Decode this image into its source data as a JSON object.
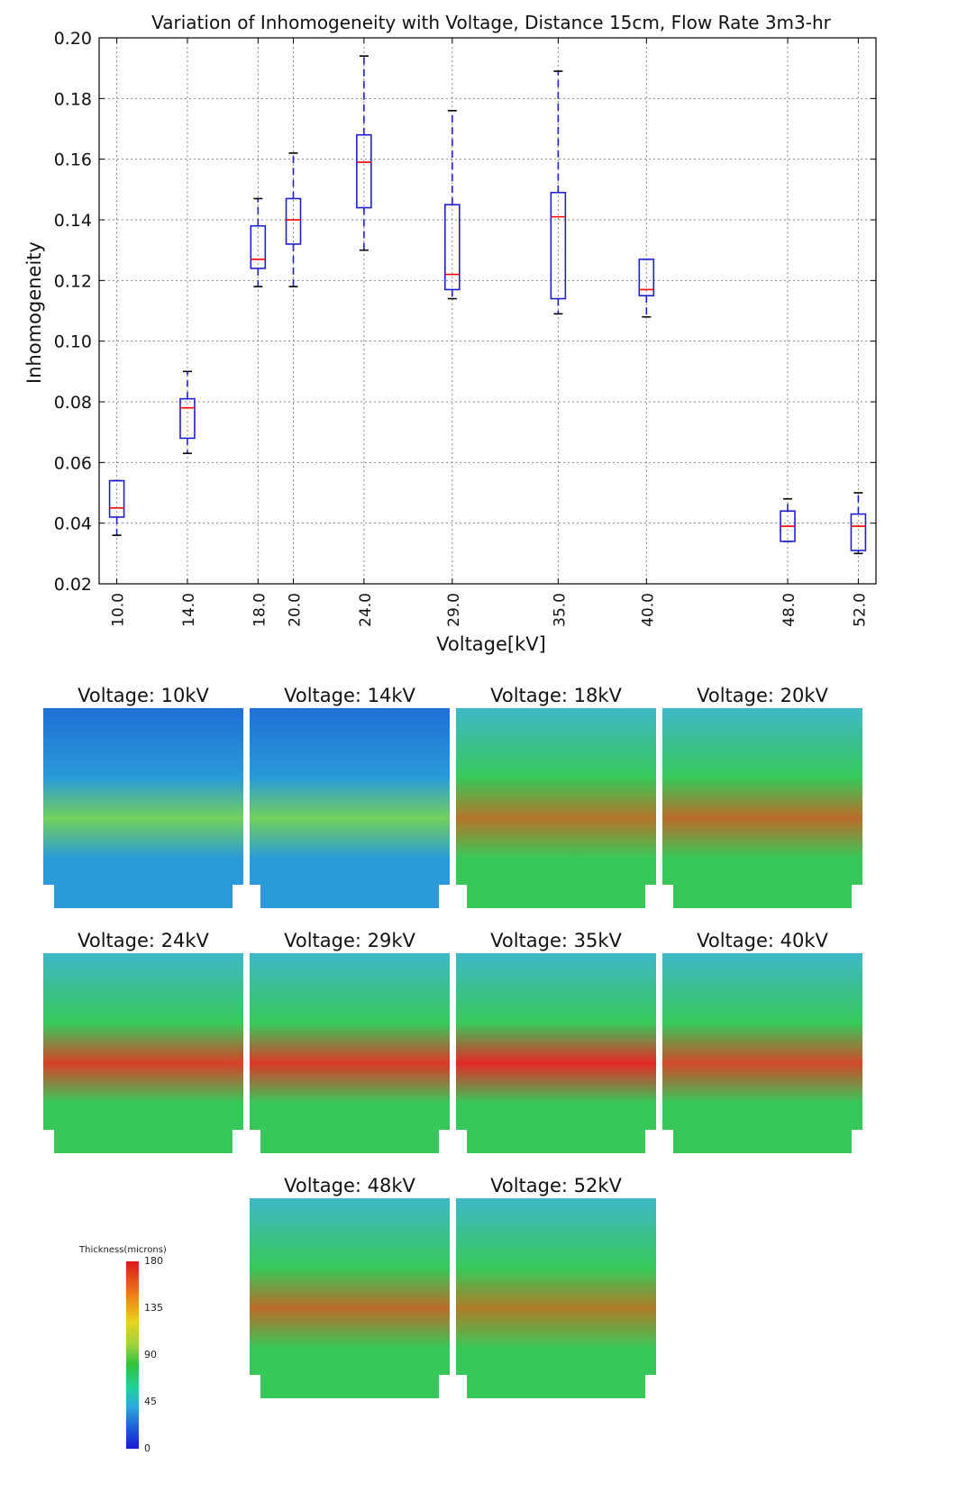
{
  "chart_data": [
    {
      "type": "box",
      "title": "Variation of Inhomogeneity with Voltage, Distance 15cm, Flow Rate 3m3-hr",
      "xlabel": "Voltage[kV]",
      "ylabel": "Inhomogeneity",
      "ylim": [
        0.02,
        0.2
      ],
      "xlim": [
        9,
        53
      ],
      "grid": true,
      "yticks": [
        "0.02",
        "0.04",
        "0.06",
        "0.08",
        "0.10",
        "0.12",
        "0.14",
        "0.16",
        "0.18",
        "0.20"
      ],
      "categories": [
        "10.0",
        "14.0",
        "18.0",
        "20.0",
        "24.0",
        "29.0",
        "35.0",
        "40.0",
        "48.0",
        "52.0"
      ],
      "x": [
        10,
        14,
        18,
        20,
        24,
        29,
        35,
        40,
        48,
        52
      ],
      "series": [
        {
          "min": 0.036,
          "q1": 0.042,
          "median": 0.045,
          "q3": 0.054,
          "max": 0.054
        },
        {
          "min": 0.063,
          "q1": 0.068,
          "median": 0.078,
          "q3": 0.081,
          "max": 0.09
        },
        {
          "min": 0.118,
          "q1": 0.124,
          "median": 0.127,
          "q3": 0.138,
          "max": 0.147
        },
        {
          "min": 0.118,
          "q1": 0.132,
          "median": 0.14,
          "q3": 0.147,
          "max": 0.162
        },
        {
          "min": 0.13,
          "q1": 0.144,
          "median": 0.159,
          "q3": 0.168,
          "max": 0.194
        },
        {
          "min": 0.114,
          "q1": 0.117,
          "median": 0.122,
          "q3": 0.145,
          "max": 0.176
        },
        {
          "min": 0.109,
          "q1": 0.114,
          "median": 0.141,
          "q3": 0.149,
          "max": 0.189
        },
        {
          "min": 0.108,
          "q1": 0.115,
          "median": 0.117,
          "q3": 0.127,
          "max": 0.127
        },
        {
          "min": 0.034,
          "q1": 0.034,
          "median": 0.039,
          "q3": 0.044,
          "max": 0.048
        },
        {
          "min": 0.03,
          "q1": 0.031,
          "median": 0.039,
          "q3": 0.043,
          "max": 0.05
        }
      ],
      "colors": {
        "box": "#1f1fd0",
        "median": "#ff0000",
        "whisker": "#1f1fd0"
      }
    }
  ],
  "panels": [
    {
      "label": "Voltage: 10kV",
      "band_intensity": 0.45,
      "palette": "blue"
    },
    {
      "label": "Voltage: 14kV",
      "band_intensity": 0.45,
      "palette": "blue"
    },
    {
      "label": "Voltage: 18kV",
      "band_intensity": 0.55,
      "palette": "green"
    },
    {
      "label": "Voltage: 20kV",
      "band_intensity": 0.6,
      "palette": "green"
    },
    {
      "label": "Voltage: 24kV",
      "band_intensity": 0.85,
      "palette": "green"
    },
    {
      "label": "Voltage: 29kV",
      "band_intensity": 0.9,
      "palette": "green"
    },
    {
      "label": "Voltage: 35kV",
      "band_intensity": 1.0,
      "palette": "green"
    },
    {
      "label": "Voltage: 40kV",
      "band_intensity": 0.8,
      "palette": "green"
    },
    {
      "label": "Voltage: 48kV",
      "band_intensity": 0.6,
      "palette": "green"
    },
    {
      "label": "Voltage: 52kV",
      "band_intensity": 0.5,
      "palette": "green"
    }
  ],
  "colorbar": {
    "title": "Thickness(microns)",
    "ticks": [
      "180",
      "135",
      "90",
      "45",
      "0"
    ]
  }
}
